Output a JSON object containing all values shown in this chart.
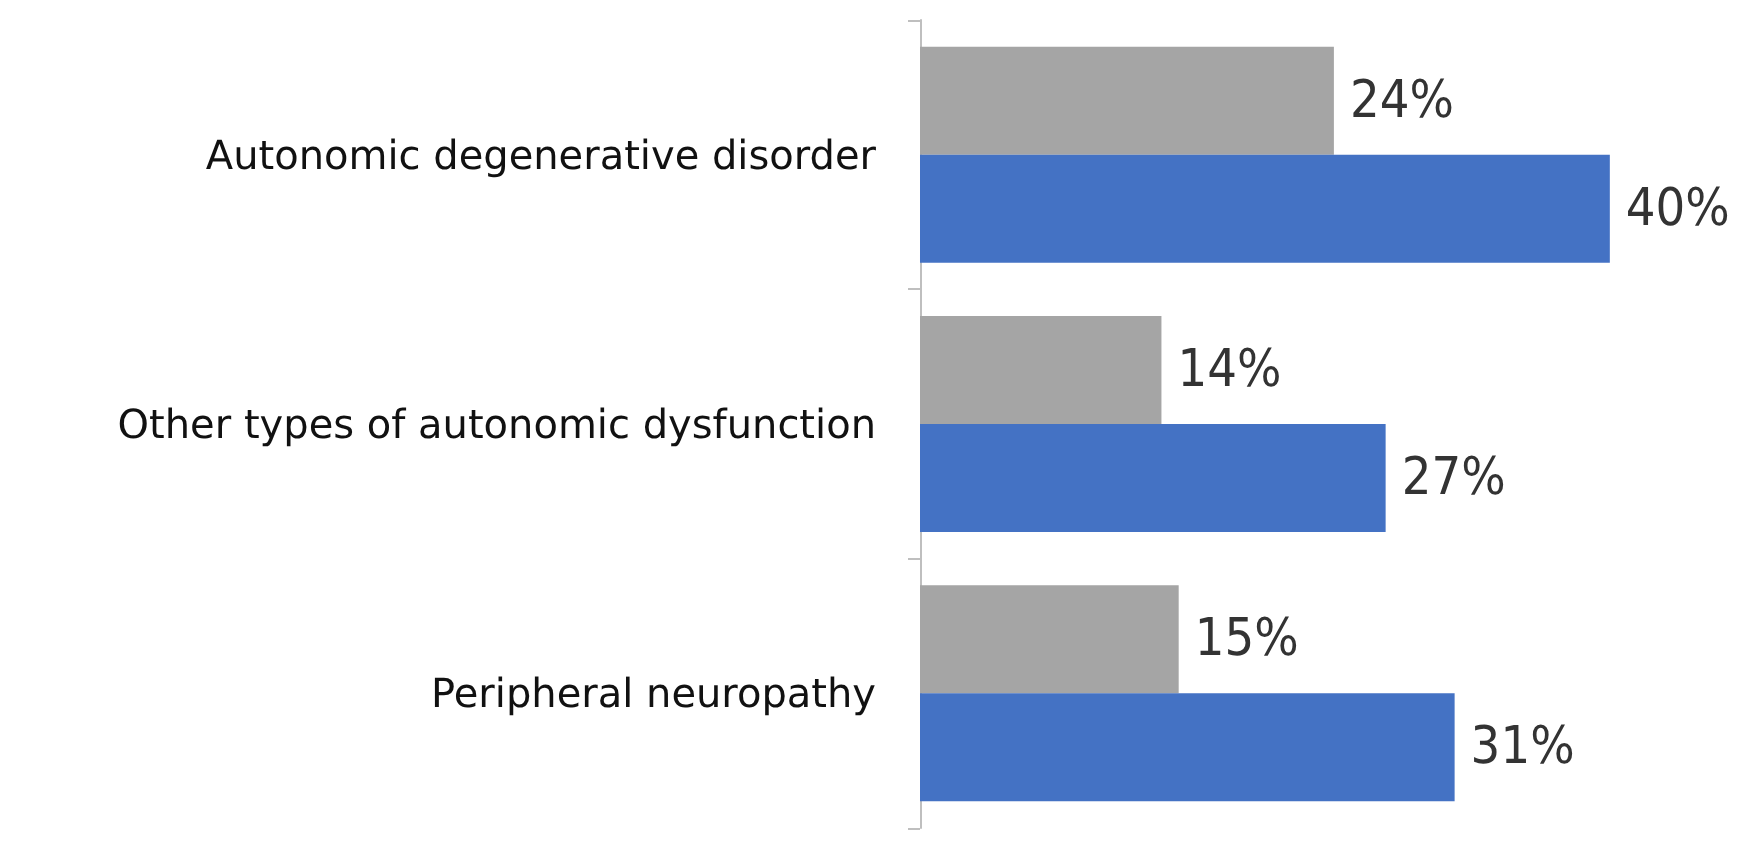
{
  "chart_data": {
    "type": "bar",
    "orientation": "horizontal",
    "categories": [
      "Autonomic degenerative disorder",
      "Other types of autonomic dysfunction",
      "Peripheral neuropathy"
    ],
    "series": [
      {
        "color": "#a5a5a5",
        "values": [
          24,
          14,
          15
        ],
        "value_labels": [
          "24%",
          "14%",
          "15%"
        ]
      },
      {
        "color": "#4472c4",
        "values": [
          40,
          27,
          31
        ],
        "value_labels": [
          "40%",
          "27%",
          "31%"
        ]
      }
    ],
    "grid": false
  }
}
